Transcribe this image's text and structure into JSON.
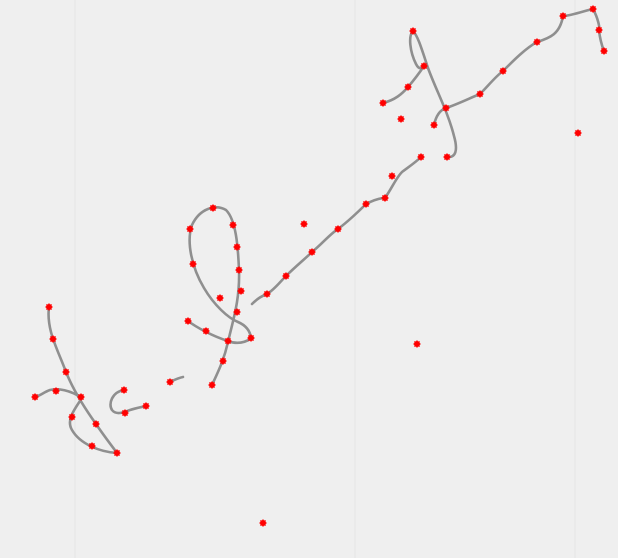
{
  "colors": {
    "paper": "#efefef",
    "ink": "#8f8f8f",
    "marker": "#ff0000",
    "ruling": "#e6e6e6"
  },
  "signature": {
    "description_visible_text": ""
  }
}
